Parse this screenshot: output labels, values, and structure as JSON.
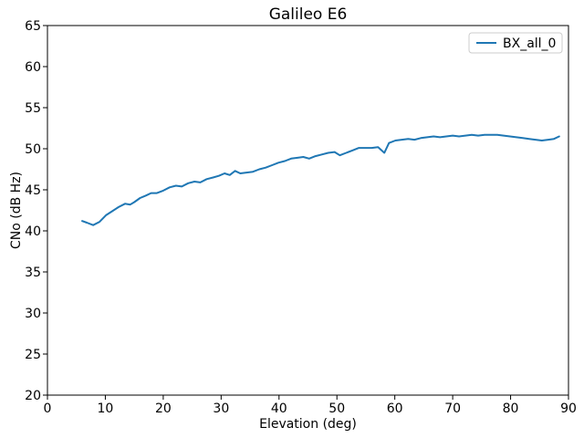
{
  "figure": {
    "title": "Galileo E6",
    "x_axis_label": "Elevation (deg)",
    "y_axis_label": "CNo (dB Hz)",
    "legend": {
      "entries": [
        "BX_all_0"
      ]
    }
  },
  "chart_data": {
    "type": "line",
    "title": "Galileo E6",
    "xlabel": "Elevation (deg)",
    "ylabel": "CNo (dB Hz)",
    "xlim": [
      0,
      90
    ],
    "ylim": [
      20,
      65
    ],
    "xticks": [
      0,
      10,
      20,
      30,
      40,
      50,
      60,
      70,
      80,
      90
    ],
    "yticks": [
      20,
      25,
      30,
      35,
      40,
      45,
      50,
      55,
      60,
      65
    ],
    "grid": false,
    "legend_position": "upper right",
    "line_color": "#1f77b4",
    "axis_color": "#000000",
    "legend_border_color": "#cccccc",
    "series": [
      {
        "name": "BX_all_0",
        "x": [
          6.0,
          6.8,
          7.9,
          9.0,
          10.1,
          11.2,
          12.3,
          13.4,
          14.3,
          15.0,
          16.0,
          17.0,
          17.9,
          18.9,
          20.0,
          21.1,
          22.2,
          23.2,
          24.3,
          25.4,
          26.4,
          27.5,
          28.6,
          29.6,
          30.6,
          31.5,
          32.4,
          33.3,
          34.4,
          35.5,
          36.6,
          37.7,
          38.8,
          39.9,
          41.0,
          42.1,
          43.2,
          44.2,
          45.2,
          46.3,
          47.4,
          48.5,
          49.6,
          50.5,
          51.6,
          52.7,
          53.8,
          54.9,
          56.0,
          57.1,
          58.2,
          59.0,
          60.1,
          61.2,
          62.3,
          63.4,
          64.5,
          65.6,
          66.7,
          67.8,
          68.9,
          70.0,
          71.1,
          72.2,
          73.3,
          74.4,
          75.5,
          76.6,
          77.7,
          78.8,
          79.9,
          81.0,
          82.1,
          83.2,
          84.3,
          85.4,
          86.5,
          87.5,
          88.4
        ],
        "y": [
          41.2,
          41.0,
          40.7,
          41.1,
          41.9,
          42.4,
          42.9,
          43.3,
          43.2,
          43.5,
          44.0,
          44.3,
          44.6,
          44.6,
          44.9,
          45.3,
          45.5,
          45.4,
          45.8,
          46.0,
          45.9,
          46.3,
          46.5,
          46.7,
          47.0,
          46.8,
          47.3,
          47.0,
          47.1,
          47.2,
          47.5,
          47.7,
          48.0,
          48.3,
          48.5,
          48.8,
          48.9,
          49.0,
          48.8,
          49.1,
          49.3,
          49.5,
          49.6,
          49.2,
          49.5,
          49.8,
          50.1,
          50.1,
          50.1,
          50.2,
          49.5,
          50.7,
          51.0,
          51.1,
          51.2,
          51.1,
          51.3,
          51.4,
          51.5,
          51.4,
          51.5,
          51.6,
          51.5,
          51.6,
          51.7,
          51.6,
          51.7,
          51.7,
          51.7,
          51.6,
          51.5,
          51.4,
          51.3,
          51.2,
          51.1,
          51.0,
          51.1,
          51.2,
          51.5
        ]
      }
    ]
  }
}
